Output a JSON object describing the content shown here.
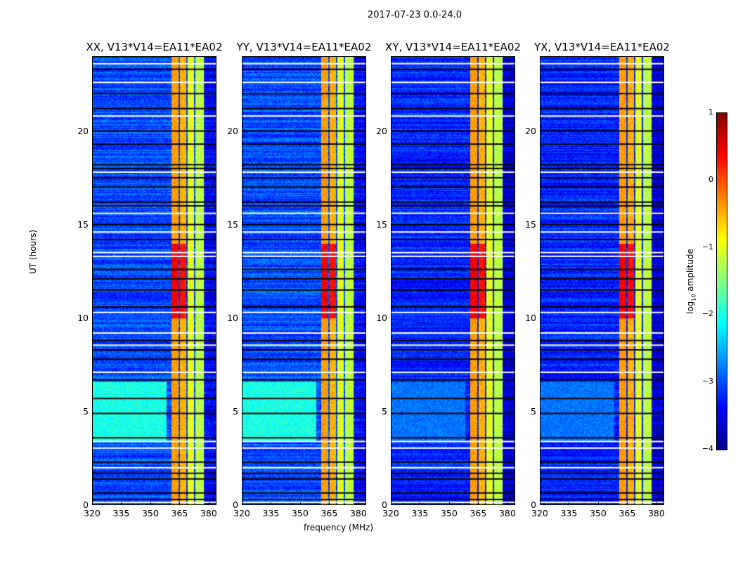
{
  "suptitle": "2017-07-23 0.0-24.0",
  "chart_data": {
    "type": "heatmap",
    "xlabel": "frequency (MHz)",
    "ylabel": "UT (hours)",
    "xlim": [
      320,
      384
    ],
    "ylim": [
      0,
      24
    ],
    "xticks": [
      "320",
      "335",
      "350",
      "365",
      "380"
    ],
    "xtick_values": [
      320,
      335,
      350,
      365,
      380
    ],
    "yticks": [
      "0",
      "5",
      "10",
      "15",
      "20"
    ],
    "ytick_values": [
      0,
      5,
      10,
      15,
      20
    ],
    "colormap": "jet",
    "colorbar": {
      "label_main": "log",
      "label_sub": "10",
      "label_rest": " amplitude",
      "range": [
        -4,
        1
      ],
      "ticks": [
        "1",
        "0",
        "−1",
        "−2",
        "−3",
        "−4"
      ],
      "tick_values": [
        1,
        0,
        -1,
        -2,
        -3,
        -4
      ]
    },
    "panels": [
      {
        "title": "XX, V13*V14=EA11*EA02",
        "background_level": -3.0,
        "lowband_level": -2.0
      },
      {
        "title": "YY, V13*V14=EA11*EA02",
        "background_level": -3.0,
        "lowband_level": -2.0
      },
      {
        "title": "XY, V13*V14=EA11*EA02",
        "background_level": -3.2,
        "lowband_level": -2.8
      },
      {
        "title": "YX, V13*V14=EA11*EA02",
        "background_level": -3.2,
        "lowband_level": -2.8
      }
    ],
    "bright_subbands_mhz": [
      [
        360.5,
        364.3
      ],
      [
        364.9,
        368.2
      ],
      [
        368.9,
        372.4
      ],
      [
        373.0,
        377.4
      ]
    ],
    "bright_subband_levels": [
      -0.4,
      -0.5,
      -1.0,
      -1.2
    ],
    "peak_interval_hours": [
      10.0,
      14.0
    ],
    "lowband_bright_interval_hours": [
      3.4,
      6.6
    ],
    "flagged_black_hours": [
      0.3,
      0.65,
      1.4,
      1.7,
      2.3,
      3.6,
      4.9,
      5.7,
      6.7,
      7.8,
      8.3,
      8.8,
      10.6,
      11.5,
      12.1,
      12.6,
      14.2,
      15.0,
      16.0,
      16.2,
      17.0,
      17.5,
      18.0,
      18.2,
      19.3,
      20.0,
      21.2,
      22.0,
      23.3
    ],
    "flagged_white_hours": [
      0.15,
      2.0,
      3.05,
      3.4,
      7.1,
      8.55,
      9.2,
      10.3,
      13.3,
      13.5,
      14.6,
      15.6,
      17.8,
      20.8,
      22.6,
      23.6
    ]
  }
}
